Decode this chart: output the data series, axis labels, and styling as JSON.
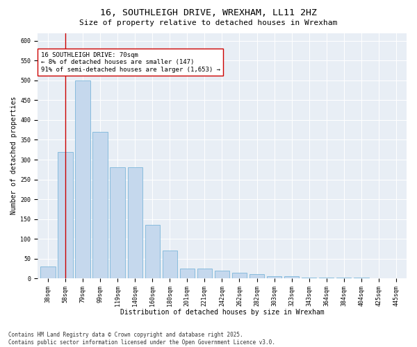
{
  "title": "16, SOUTHLEIGH DRIVE, WREXHAM, LL11 2HZ",
  "subtitle": "Size of property relative to detached houses in Wrexham",
  "xlabel": "Distribution of detached houses by size in Wrexham",
  "ylabel": "Number of detached properties",
  "categories": [
    "38sqm",
    "58sqm",
    "79sqm",
    "99sqm",
    "119sqm",
    "140sqm",
    "160sqm",
    "180sqm",
    "201sqm",
    "221sqm",
    "242sqm",
    "262sqm",
    "282sqm",
    "303sqm",
    "323sqm",
    "343sqm",
    "364sqm",
    "384sqm",
    "404sqm",
    "425sqm",
    "445sqm"
  ],
  "values": [
    30,
    320,
    500,
    370,
    280,
    280,
    135,
    70,
    25,
    25,
    20,
    15,
    10,
    5,
    5,
    2,
    2,
    2,
    2,
    1,
    1
  ],
  "bar_color": "#c5d8ed",
  "bar_edge_color": "#6aaed6",
  "vline_x_index": 1,
  "vline_color": "#cc0000",
  "annotation_text": "16 SOUTHLEIGH DRIVE: 70sqm\n← 8% of detached houses are smaller (147)\n91% of semi-detached houses are larger (1,653) →",
  "annotation_box_color": "#ffffff",
  "annotation_box_edge": "#cc0000",
  "ylim": [
    0,
    620
  ],
  "yticks": [
    0,
    50,
    100,
    150,
    200,
    250,
    300,
    350,
    400,
    450,
    500,
    550,
    600
  ],
  "background_color": "#e8eef5",
  "footer_text": "Contains HM Land Registry data © Crown copyright and database right 2025.\nContains public sector information licensed under the Open Government Licence v3.0.",
  "title_fontsize": 9.5,
  "subtitle_fontsize": 8,
  "xlabel_fontsize": 7,
  "ylabel_fontsize": 7,
  "tick_fontsize": 6,
  "annotation_fontsize": 6.5,
  "footer_fontsize": 5.5
}
